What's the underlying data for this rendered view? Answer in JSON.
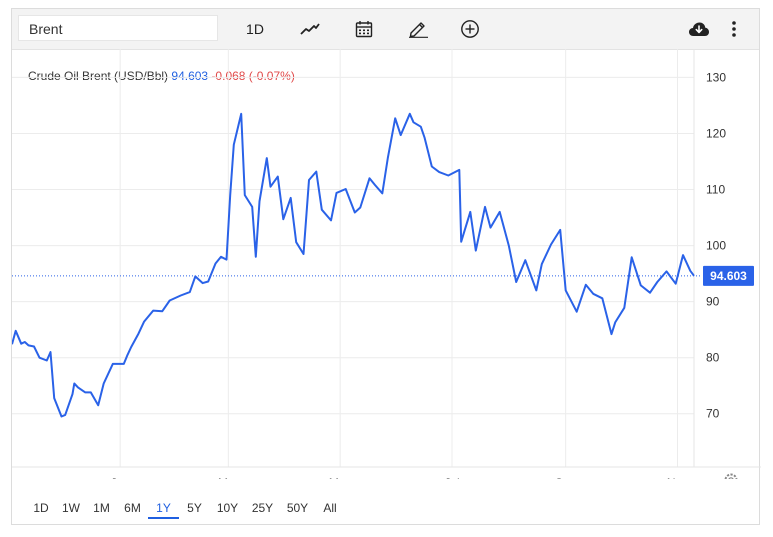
{
  "toolbar": {
    "search_value": "Brent",
    "interval_label": "1D",
    "icons": [
      "line-chart-icon",
      "calendar-icon",
      "pencil-icon",
      "plus-circle-icon",
      "cloud-download-icon",
      "more-vertical-icon"
    ]
  },
  "legend": {
    "name": "Crude Oil Brent (USD/Bbl)",
    "value": "94.603",
    "change": "-0.068 (-0.07%)"
  },
  "ranges": [
    "1D",
    "1W",
    "1M",
    "6M",
    "1Y",
    "5Y",
    "10Y",
    "25Y",
    "50Y",
    "All"
  ],
  "active_range": "1Y",
  "colors": {
    "line": "#2a62e8",
    "negative": "#e04848",
    "grid": "#ececec"
  },
  "chart_data": {
    "type": "line",
    "price_label": "94.603",
    "y_ticks": [
      70,
      80,
      90,
      100,
      110,
      120,
      130
    ],
    "ylim": [
      60.5,
      131.5
    ],
    "x_tick_labels": [
      "Jan",
      "Mar",
      "May",
      "Jul",
      "Sep",
      "Nov"
    ],
    "x_tick_dates": [
      "2022-01-01",
      "2022-03-01",
      "2022-05-01",
      "2022-07-01",
      "2022-09-01",
      "2022-11-01"
    ],
    "series": [
      {
        "x": [
          "2021-11-03",
          "2021-11-05",
          "2021-11-08",
          "2021-11-10",
          "2021-11-12",
          "2021-11-15",
          "2021-11-18",
          "2021-11-22",
          "2021-11-24",
          "2021-11-26",
          "2021-11-30",
          "2021-12-02",
          "2021-12-06",
          "2021-12-07",
          "2021-12-09",
          "2021-12-13",
          "2021-12-16",
          "2021-12-20",
          "2021-12-23",
          "2021-12-28",
          "2022-01-03",
          "2022-01-05",
          "2022-01-07",
          "2022-01-11",
          "2022-01-14",
          "2022-01-19",
          "2022-01-24",
          "2022-01-28",
          "2022-02-03",
          "2022-02-08",
          "2022-02-11",
          "2022-02-15",
          "2022-02-18",
          "2022-02-22",
          "2022-02-25",
          "2022-02-28",
          "2022-03-02",
          "2022-03-04",
          "2022-03-08",
          "2022-03-10",
          "2022-03-14",
          "2022-03-16",
          "2022-03-18",
          "2022-03-22",
          "2022-03-24",
          "2022-03-28",
          "2022-03-31",
          "2022-04-04",
          "2022-04-07",
          "2022-04-11",
          "2022-04-14",
          "2022-04-18",
          "2022-04-21",
          "2022-04-26",
          "2022-04-29",
          "2022-05-04",
          "2022-05-09",
          "2022-05-12",
          "2022-05-17",
          "2022-05-20",
          "2022-05-24",
          "2022-05-27",
          "2022-05-31",
          "2022-06-03",
          "2022-06-08",
          "2022-06-10",
          "2022-06-14",
          "2022-06-16",
          "2022-06-20",
          "2022-06-24",
          "2022-06-29",
          "2022-07-05",
          "2022-07-06",
          "2022-07-11",
          "2022-07-14",
          "2022-07-19",
          "2022-07-22",
          "2022-07-27",
          "2022-08-01",
          "2022-08-05",
          "2022-08-10",
          "2022-08-16",
          "2022-08-19",
          "2022-08-24",
          "2022-08-29",
          "2022-09-01",
          "2022-09-07",
          "2022-09-12",
          "2022-09-16",
          "2022-09-21",
          "2022-09-26",
          "2022-09-28",
          "2022-10-03",
          "2022-10-07",
          "2022-10-12",
          "2022-10-17",
          "2022-10-21",
          "2022-10-26",
          "2022-10-31",
          "2022-11-04",
          "2022-11-08",
          "2022-11-10"
        ],
        "y": [
          82.4,
          84.8,
          82.5,
          82.8,
          82.2,
          82.0,
          80.0,
          79.5,
          81.0,
          72.8,
          69.5,
          69.8,
          73.5,
          75.4,
          74.7,
          73.8,
          73.8,
          71.5,
          75.4,
          78.9,
          78.9,
          80.5,
          81.9,
          84.3,
          86.4,
          88.4,
          88.3,
          90.2,
          91.1,
          91.7,
          94.5,
          93.3,
          93.6,
          96.8,
          98.0,
          97.5,
          109.0,
          118.0,
          123.5,
          109.0,
          106.9,
          98.0,
          107.9,
          115.6,
          110.5,
          112.3,
          104.7,
          108.5,
          100.6,
          98.5,
          111.7,
          113.2,
          106.4,
          104.5,
          109.4,
          110.1,
          105.9,
          106.8,
          112.0,
          110.8,
          109.3,
          115.6,
          122.7,
          119.7,
          123.5,
          122.0,
          121.2,
          119.3,
          114.1,
          113.1,
          112.5,
          113.5,
          100.7,
          106.0,
          99.1,
          106.9,
          103.2,
          106.0,
          100.0,
          93.5,
          97.4,
          92.0,
          96.7,
          100.2,
          102.8,
          92.0,
          88.2,
          93.0,
          91.4,
          90.6,
          84.2,
          86.3,
          88.9,
          97.9,
          92.9,
          91.6,
          93.5,
          95.4,
          93.2,
          98.3,
          95.5,
          94.6
        ]
      }
    ]
  }
}
